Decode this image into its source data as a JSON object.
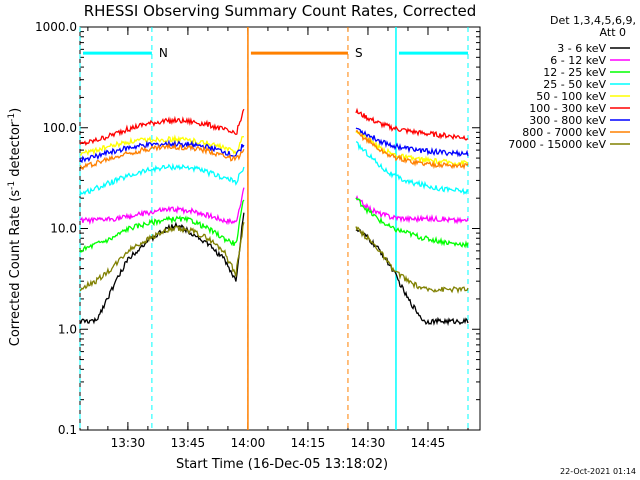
{
  "chart_data": {
    "type": "line",
    "title": "RHESSI Observing Summary Count Rates, Corrected",
    "xlabel": "Start Time (16-Dec-05 13:18:02)",
    "ylabel_main": "Corrected Count Rate (s",
    "ylabel_exp1": "-1",
    "ylabel_mid": " detector",
    "ylabel_exp2": "-1",
    "ylabel_end": ")",
    "y_scale": "log",
    "ylim": [
      0.1,
      1000
    ],
    "xlim": [
      "13:18:02",
      "14:58:00"
    ],
    "x_ticks": [
      "13:30",
      "13:45",
      "14:00",
      "14:15",
      "14:30",
      "14:45"
    ],
    "y_ticks": [
      "0.1",
      "1.0",
      "10.0",
      "100.0",
      "1000.0"
    ],
    "legend_header": [
      "Det 1,3,4,5,6,9,",
      "Att 0"
    ],
    "legend_position": "top-right outside plot",
    "timestamp": "22-Oct-2021 01:14",
    "markers": [
      {
        "label": "N",
        "color": "#00ffff",
        "bar_start": "13:18:02",
        "bar_end": "13:36:00",
        "edge_lines": [
          "13:18:02",
          "13:36:00"
        ]
      },
      {
        "label": "S",
        "color": "#ff8000",
        "bar_start": "14:00:00",
        "bar_end": "14:25:00",
        "edge_lines": [
          "14:00:00",
          "14:25:00"
        ]
      },
      {
        "label": "",
        "color": "#00ffff",
        "bar_start": "14:37:00",
        "bar_end": "14:55:00",
        "edge_lines": [
          "14:37:00",
          "14:55:00"
        ]
      }
    ],
    "data_gap": [
      "13:59:00",
      "14:27:00"
    ],
    "x": [
      "13:18",
      "13:22",
      "13:26",
      "13:30",
      "13:34",
      "13:38",
      "13:42",
      "13:46",
      "13:50",
      "13:54",
      "13:57",
      "13:59",
      "14:27",
      "14:30",
      "14:33",
      "14:36",
      "14:40",
      "14:44",
      "14:48",
      "14:52",
      "14:55"
    ],
    "series": [
      {
        "name": "3 - 6 keV",
        "color": "#000000",
        "values": [
          1.2,
          1.2,
          2.5,
          5,
          7,
          9,
          11,
          9,
          7,
          5,
          3,
          15,
          10,
          8,
          6,
          4,
          2,
          1.2,
          1.2,
          1.2,
          1.2
        ]
      },
      {
        "name": "6 - 12 keV",
        "color": "#ff00ff",
        "values": [
          12,
          12,
          12.5,
          13,
          14,
          15,
          15.5,
          15,
          13.5,
          12,
          11.5,
          25,
          20,
          16,
          14,
          13,
          12.5,
          12.5,
          12.5,
          12,
          12
        ]
      },
      {
        "name": "12 - 25 keV",
        "color": "#00ff00",
        "values": [
          6,
          7,
          8,
          10,
          11,
          12,
          12.5,
          12,
          10,
          8,
          7,
          20,
          20,
          15,
          12,
          10,
          9,
          8,
          7.5,
          7,
          7
        ]
      },
      {
        "name": "25 - 50 keV",
        "color": "#00ffff",
        "values": [
          22,
          25,
          29,
          33,
          37,
          40,
          41,
          40,
          36,
          32,
          29,
          40,
          70,
          55,
          42,
          34,
          29,
          27,
          25,
          24,
          23
        ]
      },
      {
        "name": "50 - 100 keV",
        "color": "#ffff00",
        "values": [
          55,
          60,
          66,
          72,
          75,
          77,
          77,
          75,
          70,
          63,
          57,
          85,
          95,
          78,
          63,
          55,
          50,
          48,
          46,
          45,
          45
        ]
      },
      {
        "name": "100 - 300 keV",
        "color": "#ff0000",
        "values": [
          68,
          75,
          85,
          97,
          108,
          115,
          118,
          115,
          108,
          96,
          86,
          150,
          145,
          125,
          110,
          100,
          93,
          88,
          85,
          82,
          80
        ]
      },
      {
        "name": "300 - 800 keV",
        "color": "#0000ff",
        "values": [
          48,
          52,
          58,
          63,
          67,
          69,
          69,
          68,
          64,
          58,
          52,
          70,
          100,
          85,
          74,
          67,
          62,
          59,
          57,
          56,
          55
        ]
      },
      {
        "name": "800 - 7000 keV",
        "color": "#ff8000",
        "values": [
          40,
          45,
          50,
          56,
          61,
          64,
          65,
          63,
          59,
          53,
          48,
          60,
          90,
          75,
          60,
          52,
          47,
          44,
          43,
          42,
          42
        ]
      },
      {
        "name": "7000 - 15000 keV",
        "color": "#808000",
        "values": [
          2.5,
          3,
          4,
          6,
          7.5,
          9,
          10,
          9.5,
          8,
          6,
          3.5,
          12,
          10,
          8,
          6,
          4,
          3,
          2.5,
          2.5,
          2.5,
          2.5
        ]
      }
    ]
  }
}
